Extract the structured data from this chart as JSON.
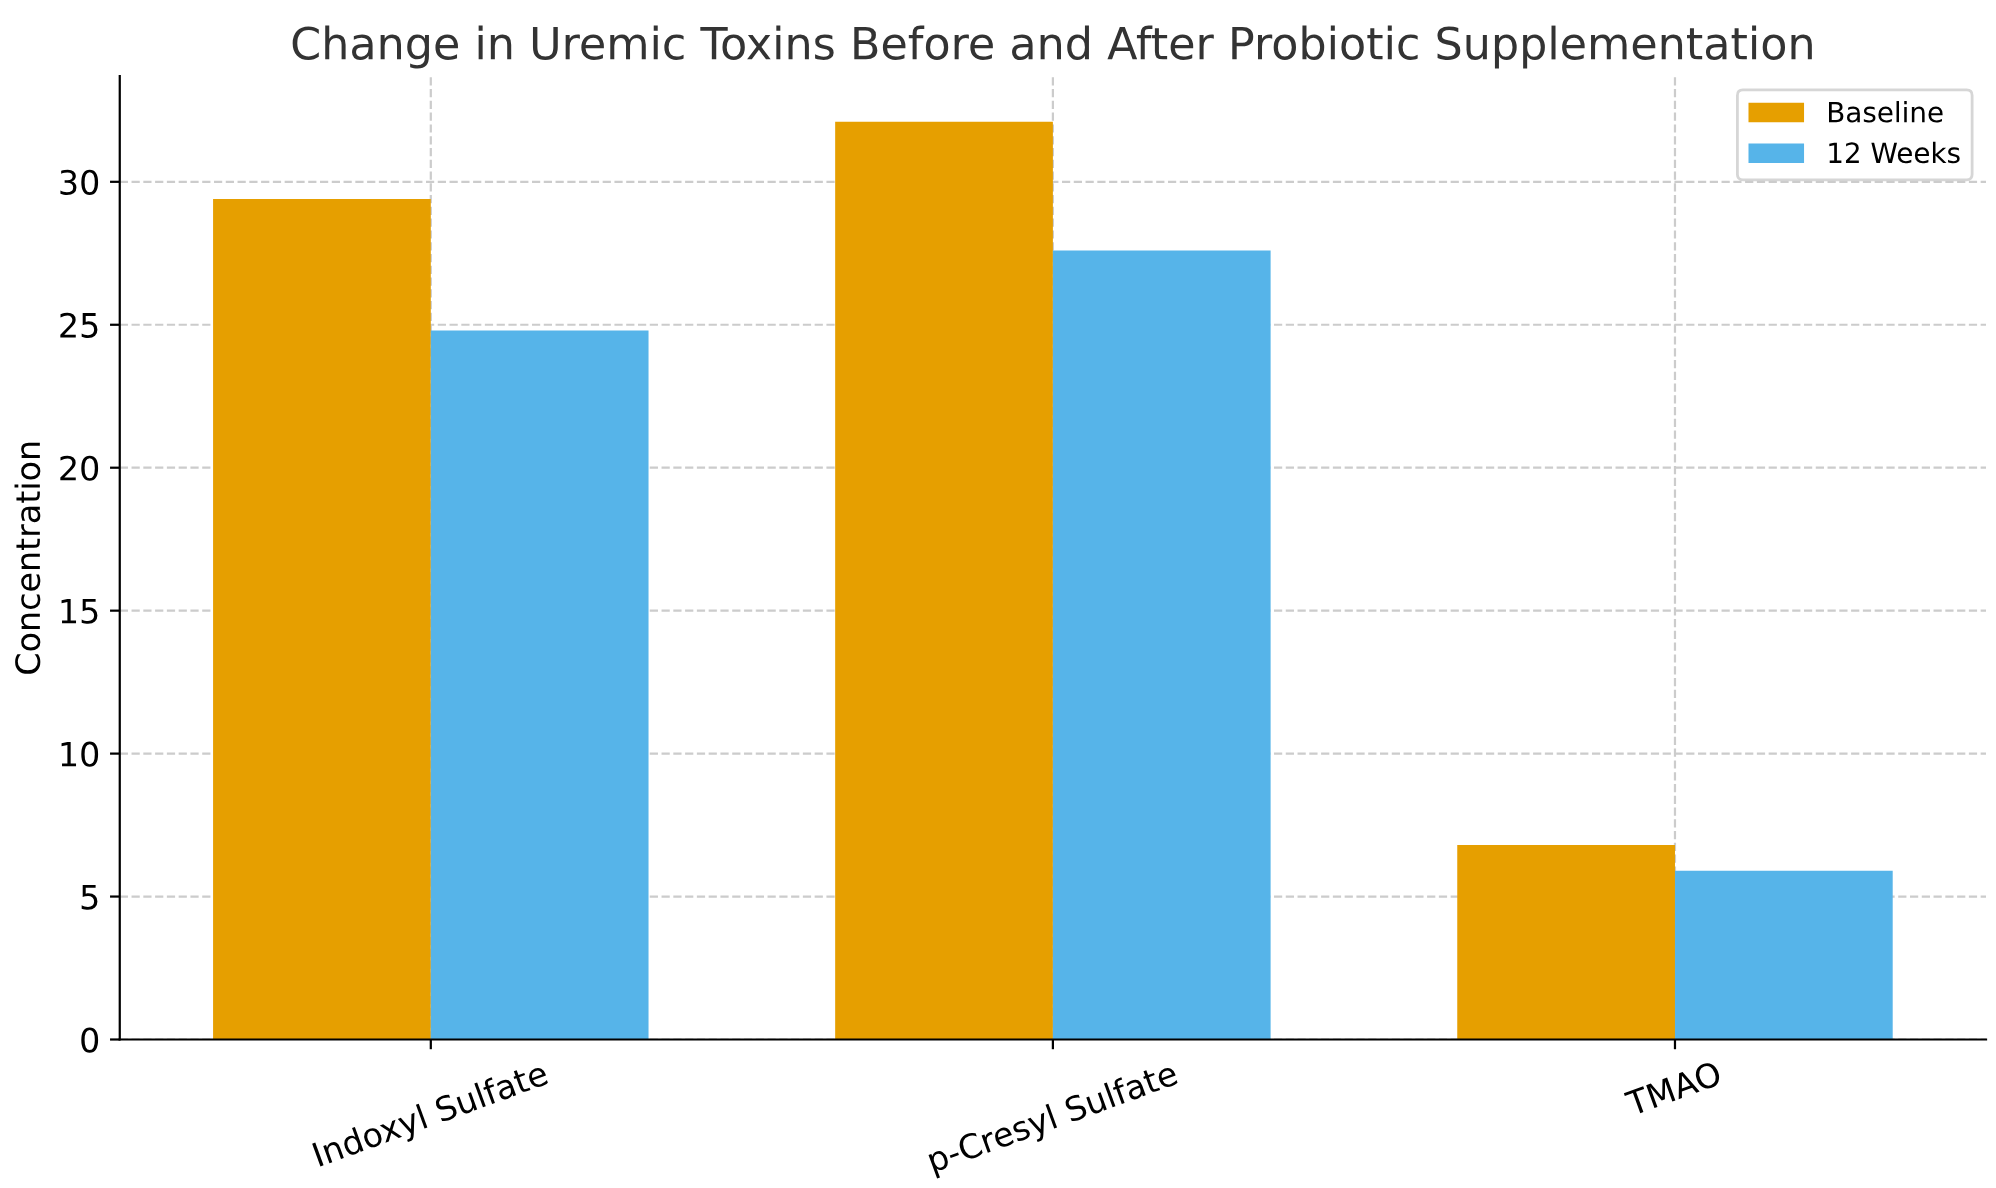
{
  "chart_data": {
    "type": "bar",
    "title": "Change in Uremic Toxins Before and After Probiotic Supplementation",
    "ylabel": "Concentration",
    "categories": [
      "Indoxyl Sulfate",
      "p-Cresyl Sulfate",
      "TMAO"
    ],
    "series": [
      {
        "name": "Baseline",
        "color": "#e69f00",
        "values": [
          29.4,
          32.1,
          6.8
        ]
      },
      {
        "name": "12 Weeks",
        "color": "#56b4e9",
        "values": [
          24.8,
          27.6,
          5.9
        ]
      }
    ],
    "ylim": [
      0,
      33.7
    ],
    "yticks": [
      0,
      5,
      10,
      15,
      20,
      25,
      30
    ],
    "grid": true,
    "legend": "top right"
  }
}
